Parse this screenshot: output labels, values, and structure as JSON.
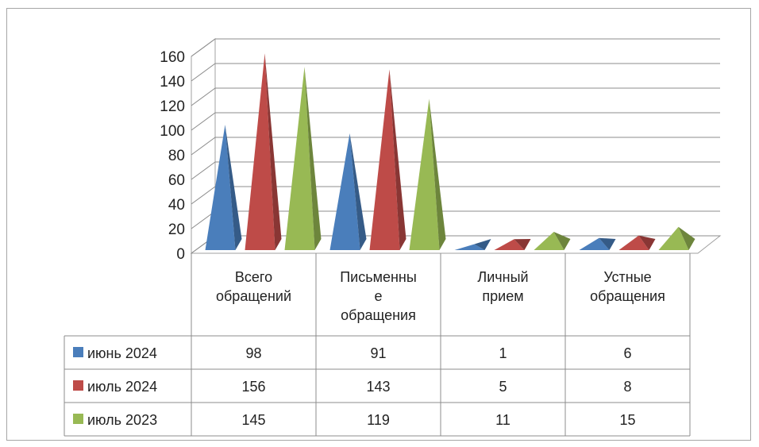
{
  "chart_data": {
    "type": "bar",
    "style": "3d-pyramid",
    "categories": [
      "Всего обращений",
      "Письменные обращения",
      "Личный прием",
      "Устные обращения"
    ],
    "category_lines": [
      [
        "Всего",
        "обращений"
      ],
      [
        "Письменны",
        "е",
        "обращения"
      ],
      [
        "Личный",
        "прием"
      ],
      [
        "Устные",
        "обращения"
      ]
    ],
    "series": [
      {
        "name": "июнь 2024",
        "color": "#4a7ebb",
        "values": [
          98,
          91,
          1,
          6
        ]
      },
      {
        "name": "июль 2024",
        "color": "#be4b48",
        "values": [
          156,
          143,
          5,
          8
        ]
      },
      {
        "name": "июль 2023",
        "color": "#98b954",
        "values": [
          145,
          119,
          11,
          15
        ]
      }
    ],
    "ylim": [
      0,
      160
    ],
    "yticks": [
      "0",
      "20",
      "40",
      "60",
      "80",
      "100",
      "120",
      "140",
      "160"
    ],
    "grid": true,
    "legend": "data-table",
    "data_table": [
      [
        "98",
        "91",
        "1",
        "6"
      ],
      [
        "156",
        "143",
        "5",
        "8"
      ],
      [
        "145",
        "119",
        "11",
        "15"
      ]
    ]
  }
}
